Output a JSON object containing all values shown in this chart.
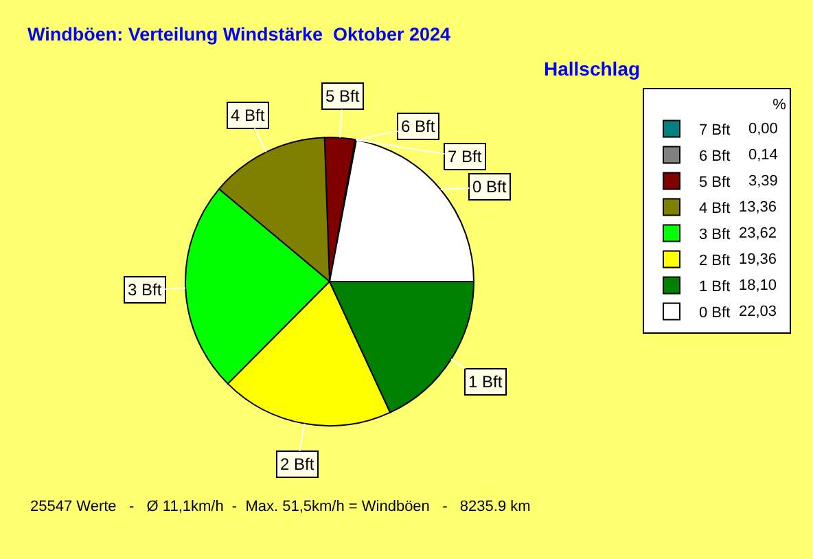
{
  "chart_data": {
    "type": "pie",
    "title": "Windböen: Verteilung Windstärke  Oktober 2024",
    "subtitle": "Hallschlag",
    "legend_title": "%",
    "categories": [
      "7 Bft",
      "6 Bft",
      "5 Bft",
      "4 Bft",
      "3 Bft",
      "2 Bft",
      "1 Bft",
      "0 Bft"
    ],
    "values": [
      0.0,
      0.14,
      3.39,
      13.36,
      23.62,
      19.36,
      18.1,
      22.03
    ],
    "value_labels": [
      "0,00",
      "0,14",
      "3,39",
      "13,36",
      "23,62",
      "19,36",
      "18,10",
      "22,03"
    ],
    "colors": [
      "#008080",
      "#808080",
      "#800000",
      "#808000",
      "#00ff00",
      "#ffff00",
      "#008000",
      "#ffffff"
    ],
    "legend": "top right",
    "annotations": [
      "25547 Werte   -   Ø 11,1km/h  -  Max. 51,5km/h = Windböen   -   8235.9 km"
    ]
  }
}
